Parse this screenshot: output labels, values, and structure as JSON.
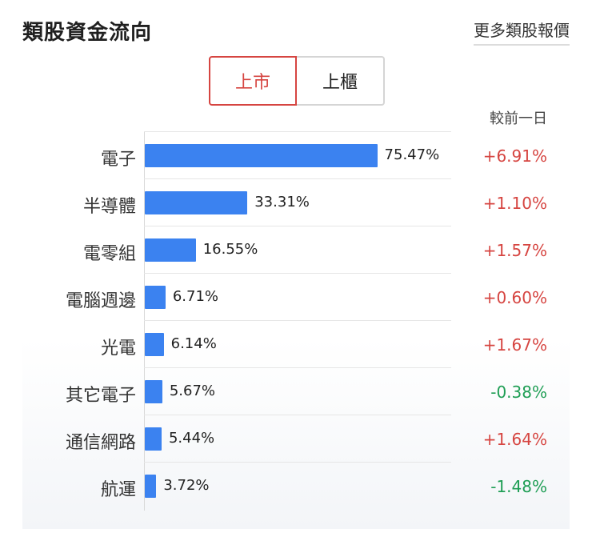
{
  "header": {
    "title": "類股資金流向",
    "more_link": "更多類股報價"
  },
  "tabs": [
    {
      "label": "上市",
      "active": true
    },
    {
      "label": "上櫃",
      "active": false
    }
  ],
  "column_header": "較前一日",
  "colors": {
    "bar": "#3b82f0",
    "up": "#d64541",
    "down": "#1f9e55",
    "active_tab": "#d64541"
  },
  "chart_data": {
    "type": "bar",
    "orientation": "horizontal",
    "categories": [
      "電子",
      "半導體",
      "電零組",
      "電腦週邊",
      "光電",
      "其它電子",
      "通信網路",
      "航運"
    ],
    "values": [
      75.47,
      33.31,
      16.55,
      6.71,
      6.14,
      5.67,
      5.44,
      3.72
    ],
    "value_labels": [
      "75.47%",
      "33.31%",
      "16.55%",
      "6.71%",
      "6.14%",
      "5.67%",
      "5.44%",
      "3.72%"
    ],
    "changes": [
      6.91,
      1.1,
      1.57,
      0.6,
      1.67,
      -0.38,
      1.64,
      -1.48
    ],
    "change_labels": [
      "+6.91%",
      "+1.10%",
      "+1.57%",
      "+0.60%",
      "+1.67%",
      "-0.38%",
      "+1.64%",
      "-1.48%"
    ],
    "xlim": [
      0,
      100
    ]
  }
}
